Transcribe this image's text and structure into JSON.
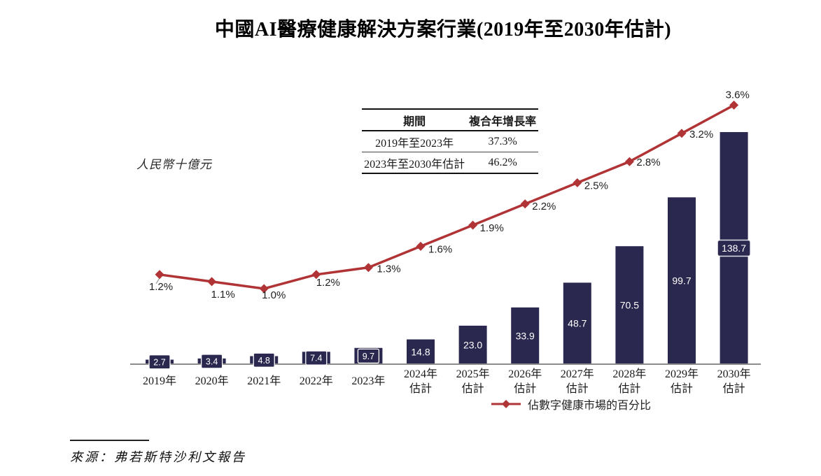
{
  "title": "中國AI醫療健康解決方案行業(2019年至2030年估計)",
  "y_axis_unit": "人民幣十億元",
  "cagr_table": {
    "headers": {
      "period": "期間",
      "cagr": "複合年增長率"
    },
    "rows": [
      {
        "period": "2019年至2023年",
        "cagr": "37.3%"
      },
      {
        "period": "2023年至2030年估計",
        "cagr": "46.2%"
      }
    ]
  },
  "legend": {
    "label": "佔數字健康市場的百分比"
  },
  "source": "來源：弗若斯特沙利文報告",
  "colors": {
    "bar": "#2b2850",
    "line": "#b03336",
    "axis": "#8c8c8c",
    "bar_label_text": "#ffffff",
    "text": "#1a1a1a"
  },
  "chart_data": {
    "type": "combo",
    "categories": [
      "2019年",
      "2020年",
      "2021年",
      "2022年",
      "2023年",
      "2024年估計",
      "2025年估計",
      "2026年估計",
      "2027年估計",
      "2028年估計",
      "2029年估計",
      "2030年估計"
    ],
    "series": [
      {
        "type": "bar",
        "unit": "人民幣十億元",
        "values": [
          2.7,
          3.4,
          4.8,
          7.4,
          9.7,
          14.8,
          23.0,
          33.9,
          48.7,
          70.5,
          99.7,
          138.7
        ],
        "value_labels": [
          "2.7",
          "3.4",
          "4.8",
          "7.4",
          "9.7",
          "14.8",
          "23.0",
          "33.9",
          "48.7",
          "70.5",
          "99.7",
          "138.7"
        ]
      },
      {
        "type": "line",
        "name": "佔數字健康市場的百分比",
        "unit": "%",
        "values": [
          1.2,
          1.1,
          1.0,
          1.2,
          1.3,
          1.6,
          1.9,
          2.2,
          2.5,
          2.8,
          3.2,
          3.6
        ],
        "value_labels": [
          "1.2%",
          "1.1%",
          "1.0%",
          "1.2%",
          "1.3%",
          "1.6%",
          "1.9%",
          "2.2%",
          "2.5%",
          "2.8%",
          "3.2%",
          "3.6%"
        ]
      }
    ],
    "ylim": [
      0,
      150
    ],
    "grid": false,
    "legend_position": "bottom",
    "annotations": {
      "cagr_2019_2023": "37.3%",
      "cagr_2023_2030e": "46.2%"
    }
  }
}
